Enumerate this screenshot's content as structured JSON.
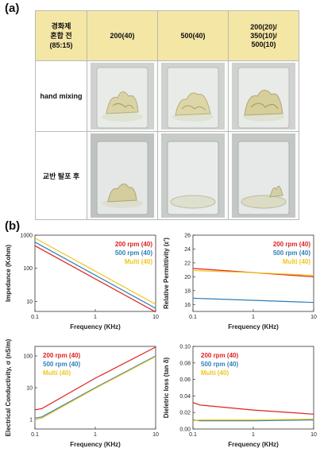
{
  "panel_a": {
    "label": "(a)",
    "header_first": [
      "경화제",
      "혼합 전",
      "(85:15)"
    ],
    "columns": [
      "200(40)",
      "500(40)",
      "200(20)/\n350(10)/\n500(10)"
    ],
    "columns_lines": [
      [
        "200(40)"
      ],
      [
        "500(40)"
      ],
      [
        "200(20)/",
        "350(10)/",
        "500(10)"
      ]
    ],
    "rows": [
      "hand mixing",
      "교반 탈포 후"
    ]
  },
  "panel_b": {
    "label": "(b)"
  },
  "colors": {
    "red": "#e02020",
    "blue": "#2c7fb8",
    "yellow": "#f2c41a",
    "header": "#f4e6a4"
  },
  "chart_data": [
    {
      "type": "line",
      "xlabel": "Frequency (KHz)",
      "ylabel": "Impedance (Kohm)",
      "xscale": "log",
      "yscale": "log",
      "xlim": [
        0.1,
        10
      ],
      "ylim": [
        5,
        1000
      ],
      "xticks": [
        "0.1",
        "1",
        "10"
      ],
      "yticks": [
        "1000",
        "100",
        "10"
      ],
      "legend_position": "top-right",
      "series": [
        {
          "name": "200 rpm (40)",
          "color": "#e02020",
          "x": [
            0.1,
            10
          ],
          "y": [
            480,
            4.8
          ]
        },
        {
          "name": "500 rpm (40)",
          "color": "#2c7fb8",
          "x": [
            0.1,
            10
          ],
          "y": [
            620,
            6.2
          ]
        },
        {
          "name": "Multi (40)",
          "color": "#f2c41a",
          "x": [
            0.1,
            10
          ],
          "y": [
            820,
            8.2
          ]
        }
      ]
    },
    {
      "type": "line",
      "xlabel": "Frequency (KHz)",
      "ylabel": "Relative Permittivity (ε')",
      "xscale": "log",
      "yscale": "linear",
      "xlim": [
        0.1,
        10
      ],
      "ylim": [
        15,
        26
      ],
      "xticks": [
        "0.1",
        "1",
        "10"
      ],
      "yticks": [
        "26",
        "24",
        "22",
        "20",
        "18",
        "16"
      ],
      "legend_position": "top-right",
      "series": [
        {
          "name": "200 rpm (40)",
          "color": "#e02020",
          "x": [
            0.1,
            1,
            10
          ],
          "y": [
            21.2,
            20.6,
            20.0
          ]
        },
        {
          "name": "500 rpm (40)",
          "color": "#2c7fb8",
          "x": [
            0.1,
            1,
            10
          ],
          "y": [
            16.9,
            16.6,
            16.3
          ]
        },
        {
          "name": "Multi (40)",
          "color": "#f2c41a",
          "x": [
            0.1,
            1,
            10
          ],
          "y": [
            20.9,
            20.6,
            20.2
          ]
        }
      ]
    },
    {
      "type": "line",
      "xlabel": "Frequency (KHz)",
      "ylabel": "Electrical Conductivity, σ (nS/m)",
      "xscale": "log",
      "yscale": "log",
      "xlim": [
        0.1,
        10
      ],
      "ylim": [
        0.5,
        200
      ],
      "xticks": [
        "0.1",
        "1",
        "10"
      ],
      "yticks": [
        "100",
        "10",
        "1"
      ],
      "legend_position": "top-left",
      "series": [
        {
          "name": "200 rpm (40)",
          "color": "#e02020",
          "x": [
            0.1,
            0.13,
            1,
            10
          ],
          "y": [
            2.0,
            2.2,
            20,
            190
          ]
        },
        {
          "name": "500 rpm (40)",
          "color": "#2c7fb8",
          "x": [
            0.1,
            0.13,
            1,
            10
          ],
          "y": [
            1.1,
            1.2,
            10,
            100
          ]
        },
        {
          "name": "Multi (40)",
          "color": "#f2c41a",
          "x": [
            0.1,
            0.13,
            1,
            10
          ],
          "y": [
            1.0,
            1.1,
            9.5,
            95
          ]
        }
      ]
    },
    {
      "type": "line",
      "xlabel": "Frequency (KHz)",
      "ylabel": "Dieletric loss (tan δ)",
      "xscale": "log",
      "yscale": "linear",
      "xlim": [
        0.1,
        10
      ],
      "ylim": [
        0.0,
        0.1
      ],
      "xticks": [
        "0.1",
        "1",
        "10"
      ],
      "yticks": [
        "0.10",
        "0.08",
        "0.06",
        "0.04",
        "0.02",
        "0.00"
      ],
      "legend_position": "top-left",
      "series": [
        {
          "name": "200 rpm (40)",
          "color": "#e02020",
          "x": [
            0.1,
            0.13,
            1,
            10
          ],
          "y": [
            0.032,
            0.029,
            0.023,
            0.018
          ]
        },
        {
          "name": "500 rpm (40)",
          "color": "#2c7fb8",
          "x": [
            0.1,
            0.13,
            1,
            10
          ],
          "y": [
            0.011,
            0.01,
            0.01,
            0.011
          ]
        },
        {
          "name": "Multi (40)",
          "color": "#f2c41a",
          "x": [
            0.1,
            0.13,
            1,
            10
          ],
          "y": [
            0.01,
            0.011,
            0.011,
            0.012
          ]
        }
      ]
    }
  ]
}
